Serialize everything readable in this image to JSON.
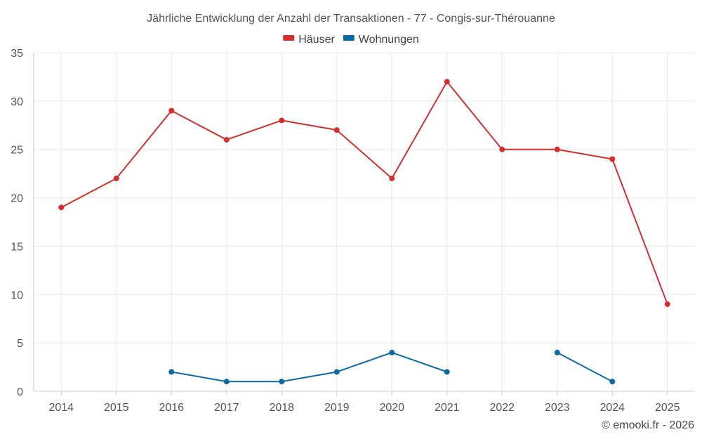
{
  "chart_data": {
    "type": "line",
    "title": "Jährliche Entwicklung der Anzahl der Transaktionen - 77 - Congis-sur-Thérouanne",
    "categories": [
      "2014",
      "2015",
      "2016",
      "2017",
      "2018",
      "2019",
      "2020",
      "2021",
      "2022",
      "2023",
      "2024",
      "2025"
    ],
    "ylim": [
      0,
      35
    ],
    "yticks": [
      0,
      5,
      10,
      15,
      20,
      25,
      30,
      35
    ],
    "grid": true,
    "legend_position": "top-center",
    "series": [
      {
        "name": "Häuser",
        "color": "#d32f2f",
        "values": [
          19,
          22,
          29,
          26,
          28,
          27,
          22,
          32,
          25,
          25,
          24,
          9
        ]
      },
      {
        "name": "Wohnungen",
        "color": "#0a6aa1",
        "values": [
          null,
          null,
          2,
          1,
          1,
          2,
          4,
          2,
          null,
          4,
          1,
          null
        ]
      }
    ]
  },
  "credit": "© emooki.fr - 2026"
}
